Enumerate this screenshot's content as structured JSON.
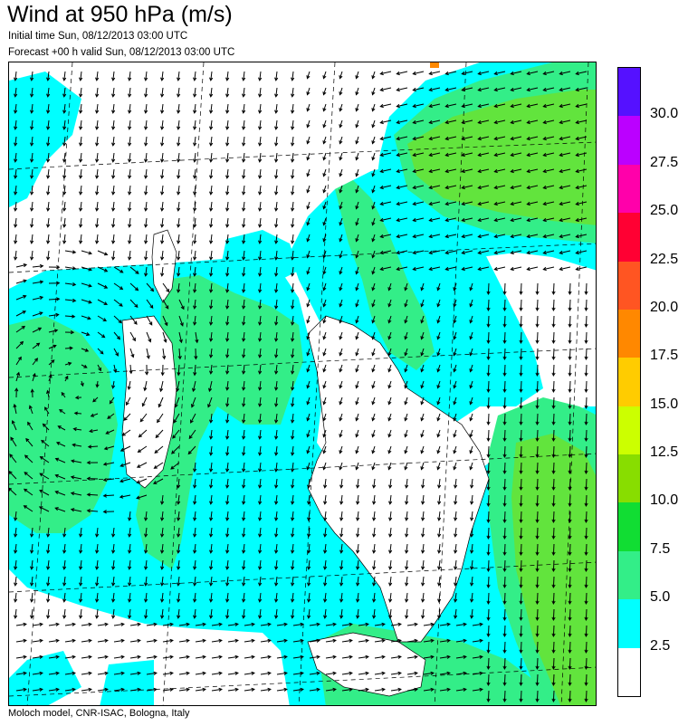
{
  "header": {
    "title": "Wind at 950 hPa (m/s)",
    "initial_time": "Initial time  Sun, 08/12/2013 03:00 UTC",
    "forecast": "Forecast +00 h valid  Sun, 08/12/2013 03:00 UTC"
  },
  "footer": {
    "credit": "Moloch model, CNR-ISAC, Bologna, Italy"
  },
  "legend": {
    "labels": [
      "2.5",
      "5.0",
      "7.5",
      "10.0",
      "12.5",
      "15.0",
      "17.5",
      "20.0",
      "22.5",
      "25.0",
      "27.5",
      "30.0"
    ],
    "colors": [
      "#ffffff",
      "#00ffff",
      "#33ee88",
      "#11dd33",
      "#88dd00",
      "#ccff00",
      "#ffcc00",
      "#ff8800",
      "#ff5522",
      "#ff0033",
      "#ff00aa",
      "#bb00ff",
      "#5511ff"
    ]
  },
  "map": {
    "field": "wind speed at 950 hPa",
    "features": [
      "wind-vector-arrows",
      "coastlines",
      "lat-lon-grid",
      "shaded-speed-contours"
    ],
    "colors": {
      "land": "#ffffff",
      "coast": "#000000",
      "grid": "#000000",
      "arrow": "#000000"
    }
  }
}
